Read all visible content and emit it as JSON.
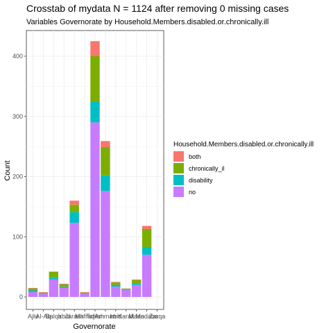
{
  "chart_data": {
    "type": "bar",
    "stacked": true,
    "title": "Crosstab of mydata N = 1124 after removing 0 missing cases",
    "subtitle": "Variables Governorate by Household.Members.disabled.or.chronically.ill",
    "xlabel": "Governorate",
    "ylabel": "Count",
    "ylim": [
      0,
      440
    ],
    "yticks": [
      0,
      100,
      200,
      300,
      400
    ],
    "grid": true,
    "legend": {
      "title": "Household.Members.disabled.or.chronically.ill",
      "placement": "right"
    },
    "categories": [
      "Ajloun",
      "AlAqaba",
      "Balqa",
      "Irbid",
      "Jarash",
      "Mafraq",
      "Tafilah",
      "Amman",
      "Irbid",
      "Karak",
      "Maan",
      "Madaba",
      "Zarqa"
    ],
    "category_labels_display": [
      "Ajlu",
      "Al-Aq",
      "Balqa",
      "Irbid",
      "Jarash",
      "Mafraq",
      "Tafilah",
      "Amman",
      "Irbid",
      "Karak",
      "Maan",
      "Madaba",
      "Zarqa"
    ],
    "series": [
      {
        "name": "no",
        "color": "#C77CFF",
        "values": [
          8,
          5,
          29,
          15,
          123,
          5,
          290,
          176,
          17,
          12,
          20,
          70,
          0
        ]
      },
      {
        "name": "disability",
        "color": "#00BFC4",
        "values": [
          3,
          1,
          3,
          2,
          18,
          1,
          35,
          26,
          3,
          1,
          2,
          13,
          0
        ]
      },
      {
        "name": "chronically_il",
        "color": "#7CAE00",
        "values": [
          3,
          1,
          10,
          4,
          12,
          1,
          75,
          47,
          4,
          1,
          6,
          30,
          0
        ]
      },
      {
        "name": "both",
        "color": "#F8766D",
        "values": [
          1,
          1,
          0,
          1,
          7,
          1,
          25,
          10,
          1,
          0,
          1,
          5,
          0
        ]
      }
    ]
  }
}
